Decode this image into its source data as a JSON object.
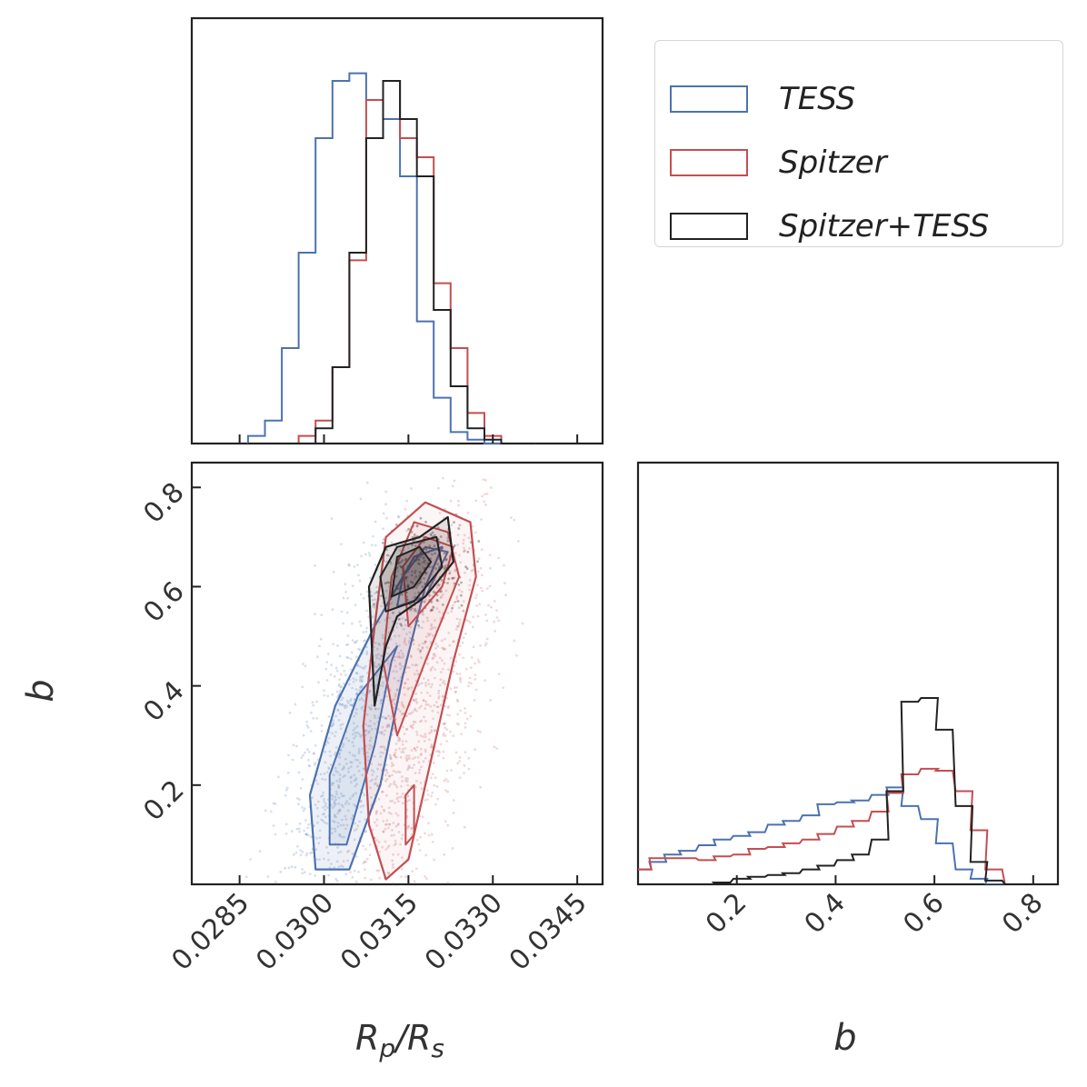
{
  "chart_data": [
    {
      "type": "histogram",
      "panel": "top-left marginal",
      "x": [
        0.0288,
        0.0291,
        0.0294,
        0.0297,
        0.03,
        0.0303,
        0.0306,
        0.0309,
        0.0312,
        0.0315,
        0.0318,
        0.0321,
        0.0324,
        0.0327,
        0.033,
        0.0333,
        0.0336
      ],
      "xlim": [
        0.02765,
        0.03495
      ],
      "series": [
        {
          "name": "TESS",
          "color": "#4c72b0",
          "values": [
            0.02,
            0.06,
            0.25,
            0.5,
            0.8,
            0.95,
            0.97,
            0.9,
            0.85,
            0.7,
            0.32,
            0.12,
            0.03,
            0.01,
            0.0,
            0.0,
            0.0
          ]
        },
        {
          "name": "Spitzer",
          "color": "#c44e52",
          "values": [
            0.0,
            0.0,
            0.0,
            0.02,
            0.06,
            0.2,
            0.48,
            0.9,
            0.95,
            0.8,
            0.75,
            0.42,
            0.25,
            0.08,
            0.02,
            0.0,
            0.0
          ]
        },
        {
          "name": "Spitzer+TESS",
          "color": "#222222",
          "values": [
            0.0,
            0.0,
            0.0,
            0.0,
            0.04,
            0.2,
            0.5,
            0.8,
            0.95,
            0.85,
            0.7,
            0.35,
            0.15,
            0.04,
            0.01,
            0.0,
            0.0
          ]
        }
      ]
    },
    {
      "type": "scatter",
      "panel": "bottom-left joint with density contours",
      "xlabel": "R_p/R_s",
      "ylabel": "b",
      "xlim": [
        0.02765,
        0.03495
      ],
      "ylim": [
        0.0,
        0.85
      ],
      "xticks": [
        "0.0285",
        "0.0300",
        "0.0315",
        "0.0330",
        "0.0345"
      ],
      "yticks": [
        "0.2",
        "0.4",
        "0.6",
        "0.8"
      ],
      "series": [
        {
          "name": "TESS",
          "color": "#4c72b0",
          "center": [
            0.0305,
            0.3
          ]
        },
        {
          "name": "Spitzer",
          "color": "#c44e52",
          "center": [
            0.03175,
            0.35
          ]
        },
        {
          "name": "Spitzer+TESS",
          "color": "#222222",
          "center": [
            0.03175,
            0.62
          ]
        }
      ]
    },
    {
      "type": "histogram",
      "panel": "bottom-right marginal",
      "xlabel": "b",
      "xlim": [
        0.0,
        0.85
      ],
      "xticks": [
        "0.2",
        "0.4",
        "0.6",
        "0.8"
      ],
      "x": [
        0.01,
        0.04,
        0.07,
        0.1,
        0.14,
        0.17,
        0.21,
        0.24,
        0.28,
        0.31,
        0.35,
        0.38,
        0.42,
        0.45,
        0.49,
        0.52,
        0.55,
        0.59,
        0.62,
        0.66,
        0.69,
        0.72,
        0.76,
        0.79,
        0.83
      ],
      "series": [
        {
          "name": "TESS",
          "color": "#4c72b0",
          "values": [
            0.08,
            0.12,
            0.16,
            0.18,
            0.21,
            0.24,
            0.26,
            0.28,
            0.32,
            0.34,
            0.37,
            0.43,
            0.44,
            0.45,
            0.48,
            0.52,
            0.42,
            0.35,
            0.22,
            0.08,
            0.03,
            0.0,
            0.0,
            0.0,
            0.0
          ]
        },
        {
          "name": "Spitzer",
          "color": "#c44e52",
          "values": [
            0.08,
            0.14,
            0.14,
            0.14,
            0.13,
            0.15,
            0.16,
            0.19,
            0.2,
            0.22,
            0.24,
            0.27,
            0.31,
            0.34,
            0.39,
            0.49,
            0.59,
            0.62,
            0.61,
            0.5,
            0.29,
            0.08,
            0.0,
            0.0,
            0.0
          ]
        },
        {
          "name": "Spitzer+TESS",
          "color": "#222222",
          "values": [
            0.0,
            0.0,
            0.0,
            0.0,
            0.0,
            0.01,
            0.03,
            0.04,
            0.05,
            0.06,
            0.08,
            0.1,
            0.13,
            0.16,
            0.24,
            0.5,
            0.98,
            1.0,
            0.83,
            0.42,
            0.12,
            0.02,
            0.0,
            0.0,
            0.0
          ]
        }
      ]
    }
  ],
  "legend": {
    "placement": "top-right",
    "entries": [
      {
        "label": "TESS",
        "color": "#4c72b0"
      },
      {
        "label": "Spitzer",
        "color": "#c44e52"
      },
      {
        "label": "Spitzer+TESS",
        "color": "#222222"
      }
    ]
  }
}
